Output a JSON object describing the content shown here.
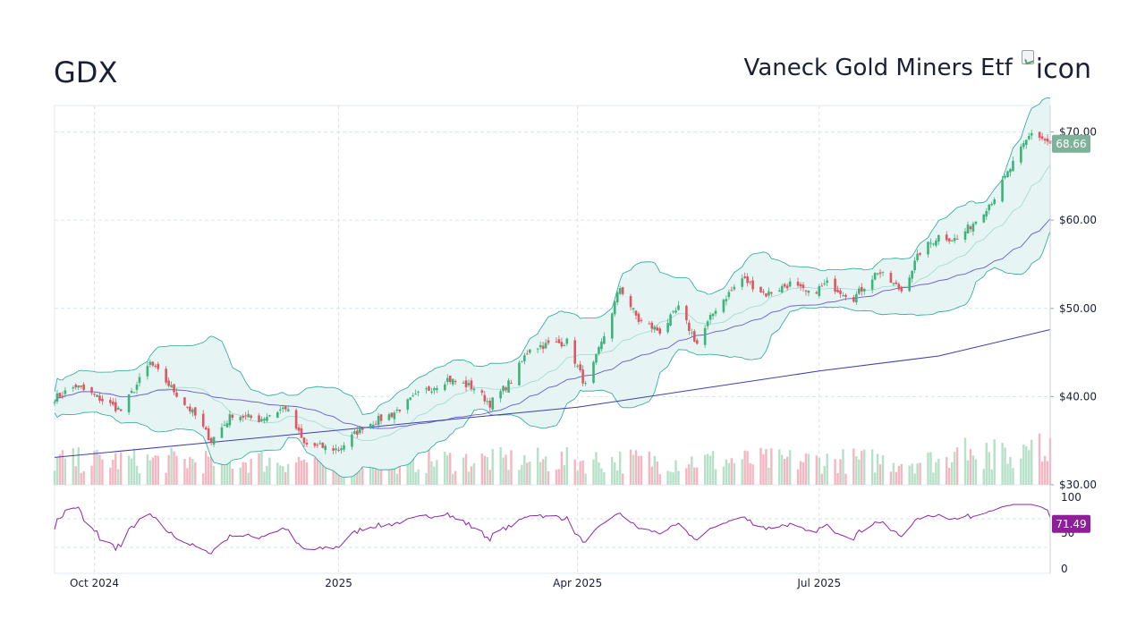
{
  "header": {
    "ticker": "GDX",
    "fund_name": "Vaneck Gold Miners Etf",
    "icon_alt": "icon"
  },
  "colors": {
    "up": "#26a69a",
    "up_candle": "#3db37a",
    "down": "#e05563",
    "band_fill": "#e6f5f3",
    "band_line": "#26a69a",
    "sma_slow": "#3f3faa",
    "sma_mid": "#6a5acd",
    "rsi": "#8e24aa",
    "price_badge": "#7fb29a",
    "rsi_badge": "#8e1e9a"
  },
  "chart_data": [
    {
      "type": "candlestick",
      "title": "",
      "ylim": [
        30,
        73
      ],
      "y_ticks": [
        "$70.00",
        "$60.00",
        "$50.00",
        "$40.00",
        "$30.00"
      ],
      "y_tick_values": [
        70,
        60,
        50,
        40,
        30
      ],
      "x_ticks": [
        "Oct 2024",
        "2025",
        "Apr 2025",
        "Jul 2025"
      ],
      "x_tick_dates": [
        "2024-10-01",
        "2025-01-01",
        "2025-04-01",
        "2025-07-01"
      ],
      "x_range": [
        "2024-09-16",
        "2025-09-26"
      ],
      "last_price": 68.66,
      "last_price_label": "68.66",
      "grid": true,
      "overlays": [
        "Bollinger Bands",
        "SMA 50",
        "SMA 200",
        "Volume"
      ],
      "close_anchors": [
        [
          "2024-09-16",
          39.8
        ],
        [
          "2024-09-24",
          41.2
        ],
        [
          "2024-10-04",
          39.6
        ],
        [
          "2024-10-11",
          38.4
        ],
        [
          "2024-10-22",
          43.8
        ],
        [
          "2024-10-30",
          41.0
        ],
        [
          "2024-11-08",
          37.8
        ],
        [
          "2024-11-14",
          35.0
        ],
        [
          "2024-11-22",
          38.0
        ],
        [
          "2024-12-02",
          37.4
        ],
        [
          "2024-12-12",
          38.8
        ],
        [
          "2024-12-19",
          34.6
        ],
        [
          "2025-01-01",
          34.0
        ],
        [
          "2025-01-10",
          36.6
        ],
        [
          "2025-01-21",
          38.0
        ],
        [
          "2025-01-31",
          40.2
        ],
        [
          "2025-02-11",
          42.0
        ],
        [
          "2025-02-21",
          41.0
        ],
        [
          "2025-02-27",
          39.2
        ],
        [
          "2025-03-07",
          41.8
        ],
        [
          "2025-03-14",
          45.6
        ],
        [
          "2025-03-28",
          46.2
        ],
        [
          "2025-04-04",
          41.2
        ],
        [
          "2025-04-10",
          46.0
        ],
        [
          "2025-04-17",
          52.4
        ],
        [
          "2025-04-24",
          48.6
        ],
        [
          "2025-05-02",
          47.4
        ],
        [
          "2025-05-09",
          50.0
        ],
        [
          "2025-05-16",
          46.0
        ],
        [
          "2025-05-23",
          50.0
        ],
        [
          "2025-06-02",
          53.4
        ],
        [
          "2025-06-11",
          51.6
        ],
        [
          "2025-06-20",
          52.8
        ],
        [
          "2025-06-27",
          51.6
        ],
        [
          "2025-07-04",
          52.8
        ],
        [
          "2025-07-14",
          51.2
        ],
        [
          "2025-07-23",
          54.2
        ],
        [
          "2025-08-01",
          52.0
        ],
        [
          "2025-08-08",
          56.4
        ],
        [
          "2025-08-15",
          58.2
        ],
        [
          "2025-08-22",
          57.8
        ],
        [
          "2025-08-29",
          60.0
        ],
        [
          "2025-09-05",
          62.6
        ],
        [
          "2025-09-12",
          66.4
        ],
        [
          "2025-09-19",
          70.0
        ],
        [
          "2025-09-26",
          68.66
        ]
      ],
      "sma200": [
        [
          "2024-09-16",
          33.1
        ],
        [
          "2025-01-01",
          36.2
        ],
        [
          "2025-04-01",
          38.8
        ],
        [
          "2025-07-01",
          42.9
        ],
        [
          "2025-08-15",
          44.6
        ],
        [
          "2025-09-26",
          47.6
        ]
      ]
    },
    {
      "type": "line",
      "title": "",
      "series": [
        {
          "name": "",
          "values": "computed from closes"
        }
      ],
      "ylim": [
        0,
        100
      ],
      "y_ticks": [
        "100",
        "50",
        "0"
      ],
      "y_tick_values": [
        100,
        50,
        0
      ],
      "last_value": 71.49,
      "last_value_label": "71.49"
    }
  ]
}
